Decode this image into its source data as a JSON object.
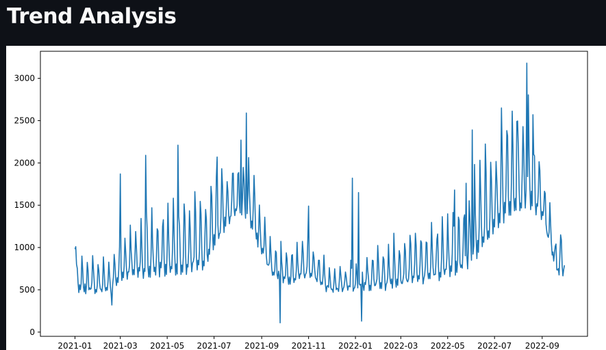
{
  "page": {
    "title": "Trend Analysis"
  },
  "colors": {
    "background": "#0e1117",
    "panel": "#ffffff",
    "line": "#1f77b4",
    "title_text": "#fafafa"
  },
  "chart_data": {
    "type": "line",
    "title": "",
    "xlabel": "",
    "ylabel": "",
    "grid": false,
    "legend": false,
    "xlim": [
      "2020-11-17",
      "2022-10-30"
    ],
    "ylim": [
      -50,
      3320
    ],
    "x_ticks": [
      "2021-01",
      "2021-03",
      "2021-05",
      "2021-07",
      "2021-09",
      "2021-11",
      "2022-01",
      "2022-03",
      "2022-05",
      "2022-07",
      "2022-09"
    ],
    "y_ticks": [
      "0",
      "500",
      "1000",
      "1500",
      "2000",
      "2500",
      "3000"
    ],
    "series": [
      {
        "color": "#1f77b4",
        "x_start": "2021-01-01",
        "x_end": "2022-09-30",
        "frequency": "daily",
        "features": [
          {
            "date": "2021-01-01",
            "value": 980
          },
          {
            "date": "2021-01-02",
            "value": 1010
          },
          {
            "date": "2021-02-18",
            "value": 320
          },
          {
            "date": "2021-03-01",
            "value": 1870
          },
          {
            "date": "2021-04-03",
            "value": 2090
          },
          {
            "date": "2021-05-15",
            "value": 2210
          },
          {
            "date": "2021-06-20",
            "value": 1450
          },
          {
            "date": "2021-07-05",
            "value": 2070
          },
          {
            "date": "2021-08-05",
            "value": 2270
          },
          {
            "date": "2021-08-12",
            "value": 2590
          },
          {
            "date": "2021-09-25",
            "value": 110
          },
          {
            "date": "2021-11-01",
            "value": 1490
          },
          {
            "date": "2021-12-28",
            "value": 1820
          },
          {
            "date": "2022-01-05",
            "value": 1650
          },
          {
            "date": "2022-01-09",
            "value": 130
          },
          {
            "date": "2022-05-10",
            "value": 1680
          },
          {
            "date": "2022-05-25",
            "value": 1760
          },
          {
            "date": "2022-06-02",
            "value": 2390
          },
          {
            "date": "2022-07-10",
            "value": 2650
          },
          {
            "date": "2022-07-30",
            "value": 2490
          },
          {
            "date": "2022-08-12",
            "value": 3180
          },
          {
            "date": "2022-08-20",
            "value": 2570
          },
          {
            "date": "2022-09-25",
            "value": 1150
          },
          {
            "date": "2022-09-30",
            "value": 790
          }
        ]
      }
    ]
  }
}
